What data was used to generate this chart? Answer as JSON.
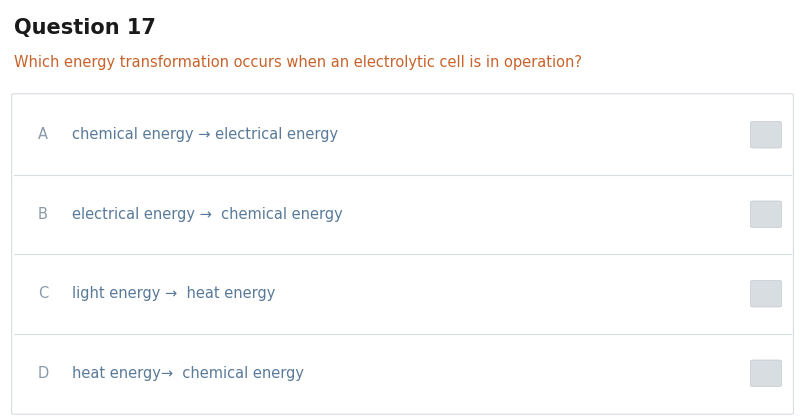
{
  "title": "Question 17",
  "question": "Which energy transformation occurs when an electrolytic cell is in operation?",
  "options": [
    {
      "label": "A",
      "text": "chemical energy → electrical energy"
    },
    {
      "label": "B",
      "text": "electrical energy →  chemical energy"
    },
    {
      "label": "C",
      "text": "light energy →  heat energy"
    },
    {
      "label": "D",
      "text": "heat energy→  chemical energy"
    }
  ],
  "title_color": "#1a1a1a",
  "question_color": "#c8622a",
  "label_color": "#8a9aaa",
  "text_color": "#5a7a99",
  "arrow_color": "#444444",
  "background_color": "#ffffff",
  "box_border_color": "#d8dde2",
  "checkbox_color": "#d8dde2",
  "figsize": [
    8.05,
    4.17
  ],
  "dpi": 100
}
